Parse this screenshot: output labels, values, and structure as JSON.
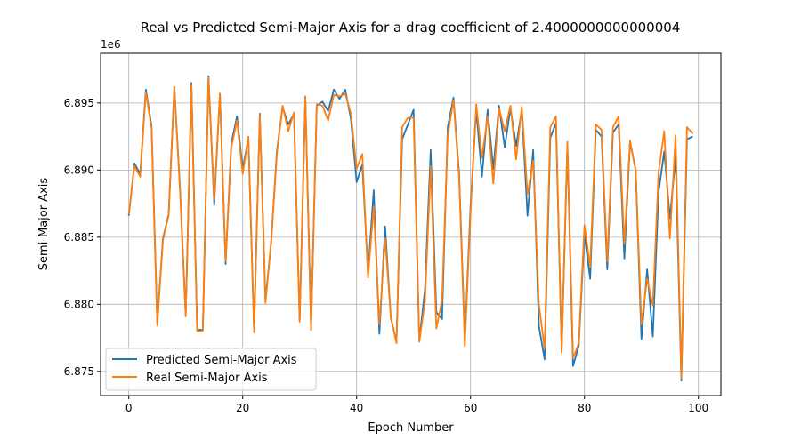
{
  "chart_data": {
    "type": "line",
    "title": "Real vs Predicted Semi-Major Axis for a drag coefficient of 2.4000000000000004",
    "xlabel": "Epoch Number",
    "ylabel": "Semi-Major Axis",
    "y_offset_label": "1e6",
    "xlim": [
      -4.95,
      103.95
    ],
    "ylim": [
      6873200,
      6898700
    ],
    "x_ticks": [
      0,
      20,
      40,
      60,
      80,
      100
    ],
    "y_ticks": [
      6875000,
      6880000,
      6885000,
      6890000,
      6895000
    ],
    "y_tick_labels": [
      "6.875",
      "6.880",
      "6.885",
      "6.890",
      "6.895"
    ],
    "grid": true,
    "legend_position": "lower-left",
    "x": [
      0,
      1,
      2,
      3,
      4,
      5,
      6,
      7,
      8,
      9,
      10,
      11,
      12,
      13,
      14,
      15,
      16,
      17,
      18,
      19,
      20,
      21,
      22,
      23,
      24,
      25,
      26,
      27,
      28,
      29,
      30,
      31,
      32,
      33,
      34,
      35,
      36,
      37,
      38,
      39,
      40,
      41,
      42,
      43,
      44,
      45,
      46,
      47,
      48,
      49,
      50,
      51,
      52,
      53,
      54,
      55,
      56,
      57,
      58,
      59,
      60,
      61,
      62,
      63,
      64,
      65,
      66,
      67,
      68,
      69,
      70,
      71,
      72,
      73,
      74,
      75,
      76,
      77,
      78,
      79,
      80,
      81,
      82,
      83,
      84,
      85,
      86,
      87,
      88,
      89,
      90,
      91,
      92,
      93,
      94,
      95,
      96,
      97,
      98,
      99
    ],
    "series": [
      {
        "name": "Predicted Semi-Major Axis",
        "color": "#1f77b4",
        "values": [
          6886600,
          6890500,
          6889700,
          6896000,
          6893300,
          6878600,
          6884900,
          6886700,
          6896200,
          6888600,
          6879200,
          6896500,
          6878100,
          6878100,
          6897000,
          6887400,
          6895700,
          6883000,
          6892000,
          6894000,
          6890100,
          6892400,
          6878000,
          6894200,
          6880300,
          6884600,
          6891400,
          6894700,
          6893400,
          6894200,
          6878800,
          6895400,
          6878100,
          6894800,
          6895100,
          6894400,
          6896000,
          6895300,
          6896000,
          6893800,
          6889100,
          6890400,
          6882300,
          6888500,
          6877800,
          6885800,
          6879000,
          6877200,
          6892300,
          6893400,
          6894500,
          6877300,
          6881100,
          6891500,
          6879400,
          6878900,
          6893200,
          6895400,
          6889700,
          6877300,
          6887300,
          6894500,
          6889500,
          6894500,
          6890100,
          6894800,
          6891700,
          6894600,
          6891800,
          6894500,
          6886600,
          6891500,
          6878400,
          6875900,
          6892400,
          6893500,
          6876500,
          6891800,
          6875400,
          6876900,
          6885200,
          6881900,
          6893000,
          6892500,
          6882600,
          6892800,
          6893400,
          6883400,
          6892100,
          6890000,
          6877400,
          6882600,
          6877600,
          6888300,
          6891400,
          6886400,
          6891000,
          6874300,
          6892300,
          6892500
        ]
      },
      {
        "name": "Real Semi-Major Axis",
        "color": "#ff7f0e",
        "values": [
          6886700,
          6890300,
          6889500,
          6895800,
          6893100,
          6878400,
          6884800,
          6886600,
          6896200,
          6888400,
          6879100,
          6896300,
          6878000,
          6878000,
          6896900,
          6887800,
          6895700,
          6883200,
          6891700,
          6893700,
          6889700,
          6892500,
          6877900,
          6894100,
          6880100,
          6884700,
          6891200,
          6894800,
          6892900,
          6894300,
          6878700,
          6895500,
          6878100,
          6894900,
          6894800,
          6893700,
          6895600,
          6895500,
          6895700,
          6894200,
          6890100,
          6891200,
          6882000,
          6887300,
          6878500,
          6884900,
          6879100,
          6877100,
          6893200,
          6893900,
          6893900,
          6877200,
          6880200,
          6890300,
          6878200,
          6880300,
          6892600,
          6895200,
          6889400,
          6876900,
          6886800,
          6894900,
          6890900,
          6894000,
          6889000,
          6894600,
          6892900,
          6894800,
          6890800,
          6894700,
          6888200,
          6890700,
          6880000,
          6876700,
          6893200,
          6894000,
          6876400,
          6892100,
          6876000,
          6877100,
          6885900,
          6882800,
          6893400,
          6893000,
          6883200,
          6893200,
          6894000,
          6884500,
          6892200,
          6890000,
          6878500,
          6881900,
          6879900,
          6889800,
          6892900,
          6884900,
          6892600,
          6874500,
          6893200,
          6892700
        ]
      }
    ]
  }
}
